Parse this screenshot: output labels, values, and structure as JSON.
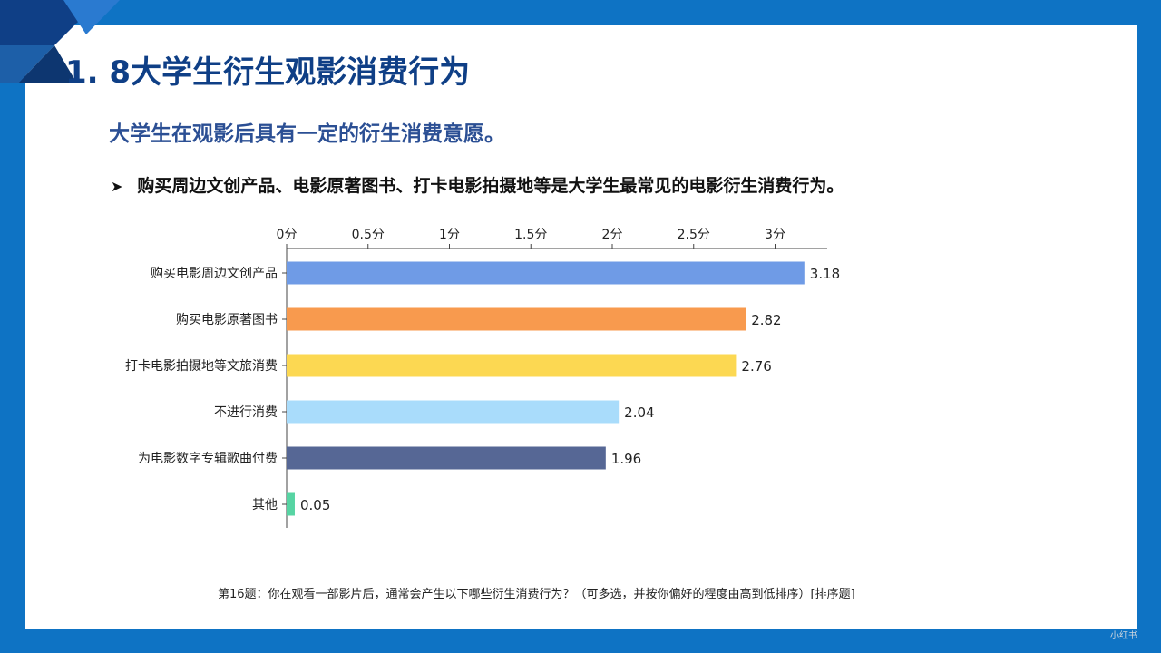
{
  "page": {
    "title": "1. 8大学生衍生观影消费行为",
    "subtitle": "大学生在观影后具有一定的衍生消费意愿。",
    "bullet": "购买周边文创产品、电影原著图书、打卡电影拍摄地等是大学生最常见的电影衍生消费行为。",
    "footnote": "第16题：你在观看一部影片后，通常会产生以下哪些衍生消费行为？（可多选，并按你偏好的程度由高到低排序）[排序题]",
    "watermark": "小红书"
  },
  "colors": {
    "frame": "#0e73c4",
    "title": "#0f3f86",
    "subtitle": "#2b4f94"
  },
  "chart_data": {
    "type": "bar",
    "orientation": "horizontal",
    "categories": [
      "购买电影周边文创产品",
      "购买电影原著图书",
      "打卡电影拍摄地等文旅消费",
      "不进行消费",
      "为电影数字专辑歌曲付费",
      "其他"
    ],
    "values": [
      3.18,
      2.82,
      2.76,
      2.04,
      1.96,
      0.05
    ],
    "value_labels": [
      "3.18",
      "2.82",
      "2.76",
      "2.04",
      "1.96",
      "0.05"
    ],
    "bar_colors": [
      "#6f9be6",
      "#f89a4e",
      "#fcd852",
      "#a9dcfb",
      "#566795",
      "#57d4a3"
    ],
    "xticks": [
      0,
      0.5,
      1,
      1.5,
      2,
      2.5,
      3
    ],
    "xtick_labels": [
      "0分",
      "0.5分",
      "1分",
      "1.5分",
      "2分",
      "2.5分",
      "3分"
    ],
    "xlim": [
      0,
      3.33
    ],
    "axis_position": "top",
    "grid": false,
    "title": "",
    "xlabel": "",
    "ylabel": ""
  }
}
